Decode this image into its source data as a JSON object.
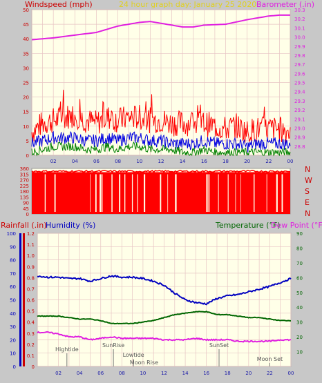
{
  "colors": {
    "background": "#c8c8c8",
    "plot_bg": "#ffffe8",
    "grid": "#e7c4c4",
    "wind_label": "#cc0000",
    "title": "#e0d020",
    "barometer": "#e020e0",
    "gust": "#ff0000",
    "avg": "#0000e0",
    "min": "#008000",
    "rain": "#cc0000",
    "humidity": "#0000c0",
    "temperature": "#006600",
    "dewpoint": "#e020e0",
    "xtick": "#1a1aa8"
  },
  "header": {
    "wind_label": "Windspeed (mph)",
    "title": "24 hour graph day:  January 25 2020",
    "baro_label": "Barometer (.in)"
  },
  "direction_letters": [
    "N",
    "W",
    "S",
    "E",
    "N"
  ],
  "bottom_header": {
    "rain_label": "Rainfall (.in)",
    "humidity_label": "Humidity (%)",
    "temp_label": "Temperature (°F)",
    "dew_label": "Dew Point (°F)"
  },
  "events": [
    {
      "label": "Hightide",
      "hour": 2.8
    },
    {
      "label": "SunRise",
      "hour": 7.2
    },
    {
      "label": "Lowtide",
      "hour": 9.1
    },
    {
      "label": "Moon Rise",
      "hour": 10.1
    },
    {
      "label": "SunSet",
      "hour": 17.2
    },
    {
      "label": "Moon Set",
      "hour": 22.0
    }
  ],
  "chart_data": [
    {
      "type": "line",
      "id": "wind_baro",
      "x_ticks": [
        "02",
        "04",
        "06",
        "08",
        "10",
        "12",
        "14",
        "16",
        "18",
        "20",
        "22",
        "00"
      ],
      "xlim": [
        0,
        24
      ],
      "y_left": {
        "label": "Windspeed (mph)",
        "lim": [
          0,
          50
        ],
        "ticks": [
          0,
          5,
          10,
          15,
          20,
          25,
          30,
          35,
          40,
          45,
          50
        ]
      },
      "y_right": {
        "label": "Barometer (.in)",
        "lim": [
          28.7,
          30.3
        ],
        "ticks": [
          28.8,
          28.9,
          29.0,
          29.1,
          29.2,
          29.3,
          29.4,
          29.5,
          29.6,
          29.7,
          29.8,
          29.9,
          30.0,
          30.1,
          30.2,
          30.3
        ]
      },
      "series": [
        {
          "name": "Barometer",
          "axis": "right",
          "x": [
            0,
            2,
            4,
            6,
            8,
            10,
            11,
            12,
            14,
            15,
            16,
            18,
            20,
            22,
            23,
            24
          ],
          "y": [
            29.97,
            29.99,
            30.02,
            30.05,
            30.12,
            30.16,
            30.17,
            30.15,
            30.11,
            30.11,
            30.13,
            30.14,
            30.19,
            30.23,
            30.24,
            30.24
          ]
        },
        {
          "name": "Gust",
          "axis": "left",
          "x": [
            0,
            1,
            2,
            3,
            4,
            5,
            6,
            7,
            8,
            9,
            10,
            11,
            12,
            13,
            14,
            15,
            16,
            17,
            18,
            19,
            20,
            21,
            22,
            23,
            24
          ],
          "y": [
            8,
            11,
            12,
            13,
            14,
            12,
            11,
            13,
            12,
            13,
            13,
            12,
            12,
            11,
            11,
            11,
            11,
            10,
            9,
            10,
            8,
            9,
            9,
            9,
            8
          ]
        },
        {
          "name": "Average",
          "axis": "left",
          "x": [
            0,
            1,
            2,
            3,
            4,
            5,
            6,
            7,
            8,
            9,
            10,
            11,
            12,
            13,
            14,
            15,
            16,
            17,
            18,
            19,
            20,
            21,
            22,
            23,
            24
          ],
          "y": [
            4,
            5,
            6,
            6,
            6,
            5,
            5,
            6,
            5,
            6,
            6,
            5,
            5,
            4,
            4,
            4,
            5,
            4,
            4,
            4,
            3,
            4,
            4,
            4,
            4
          ]
        },
        {
          "name": "Minimum",
          "axis": "left",
          "x": [
            0,
            1,
            2,
            3,
            4,
            5,
            6,
            7,
            8,
            9,
            10,
            11,
            12,
            13,
            14,
            15,
            16,
            17,
            18,
            19,
            20,
            21,
            22,
            23,
            24
          ],
          "y": [
            1,
            2,
            3,
            3,
            3,
            2,
            2,
            3,
            2,
            3,
            3,
            2,
            2,
            2,
            1,
            1,
            2,
            1,
            1,
            1,
            1,
            1,
            1,
            1,
            1
          ]
        }
      ]
    },
    {
      "type": "bar",
      "id": "wind_direction",
      "xlim": [
        0,
        24
      ],
      "y": {
        "lim": [
          0,
          360
        ],
        "ticks": [
          0,
          45,
          90,
          135,
          180,
          225,
          270,
          315,
          360
        ]
      },
      "series": [
        {
          "name": "Direction",
          "hour_bins": 24,
          "level_deg": 330,
          "dropouts_hours": [
            1.2,
            2.1,
            5.4,
            5.9,
            6.3,
            6.5,
            7.4,
            8.1,
            8.6,
            9.3,
            9.8,
            10.4,
            11.9,
            12.6,
            13.3,
            16.2,
            16.4,
            17.3,
            18.2,
            18.9,
            19.4,
            20.6,
            21.8,
            22.7,
            23.2
          ]
        }
      ]
    },
    {
      "type": "line",
      "id": "rain_hum_temp",
      "x_ticks": [
        "02",
        "04",
        "06",
        "08",
        "10",
        "12",
        "14",
        "16",
        "18",
        "20",
        "22",
        "00"
      ],
      "xlim": [
        0,
        24
      ],
      "y_hum": {
        "label": "Humidity (%)",
        "lim": [
          0,
          100
        ],
        "ticks": [
          0,
          10,
          20,
          30,
          40,
          50,
          60,
          70,
          80,
          90,
          100
        ]
      },
      "y_rain": {
        "label": "Rainfall (.in)",
        "lim": [
          0,
          1.2
        ],
        "ticks": [
          0,
          0.1,
          0.2,
          0.3,
          0.4,
          0.5,
          0.6,
          0.7,
          0.8,
          0.9,
          1.0,
          1.1,
          1.2
        ]
      },
      "y_temp": {
        "label": "Temperature (°F)",
        "lim": [
          0,
          90
        ],
        "ticks": [
          10,
          20,
          30,
          40,
          50,
          60,
          70,
          80,
          90
        ]
      },
      "series": [
        {
          "name": "Humidity",
          "axis": "hum",
          "x": [
            0,
            1,
            2,
            3,
            4,
            5,
            6,
            7,
            8,
            9,
            10,
            11,
            12,
            13,
            14,
            15,
            16,
            17,
            18,
            19,
            20,
            21,
            22,
            23,
            24
          ],
          "y": [
            68,
            67,
            67,
            66,
            66,
            64,
            66,
            68,
            67,
            67,
            66,
            64,
            61,
            55,
            50,
            48,
            47,
            51,
            53,
            54,
            56,
            58,
            60,
            63,
            66
          ]
        },
        {
          "name": "Temperature",
          "axis": "temp",
          "x": [
            0,
            1,
            2,
            3,
            4,
            5,
            6,
            7,
            8,
            9,
            10,
            11,
            12,
            13,
            14,
            15,
            16,
            17,
            18,
            19,
            20,
            21,
            22,
            23,
            24
          ],
          "y": [
            34,
            34,
            34,
            33,
            32,
            32,
            31,
            29,
            29,
            29,
            30,
            31,
            33,
            35,
            36,
            37,
            37,
            35,
            35,
            34,
            33,
            33,
            32,
            31,
            31
          ]
        },
        {
          "name": "Dew Point",
          "axis": "temp",
          "x": [
            0,
            1,
            2,
            3,
            4,
            5,
            6,
            7,
            8,
            9,
            10,
            11,
            12,
            13,
            14,
            15,
            16,
            17,
            18,
            19,
            20,
            21,
            22,
            23,
            24
          ],
          "y": [
            23,
            23,
            22,
            20,
            20,
            18,
            19,
            20,
            19,
            19,
            19,
            19,
            18,
            18,
            18,
            19,
            18,
            18,
            18,
            17,
            17,
            17,
            17,
            18,
            18
          ]
        },
        {
          "name": "Rainfall",
          "axis": "rain",
          "x": [
            0,
            24
          ],
          "y": [
            0,
            0
          ]
        }
      ]
    }
  ]
}
